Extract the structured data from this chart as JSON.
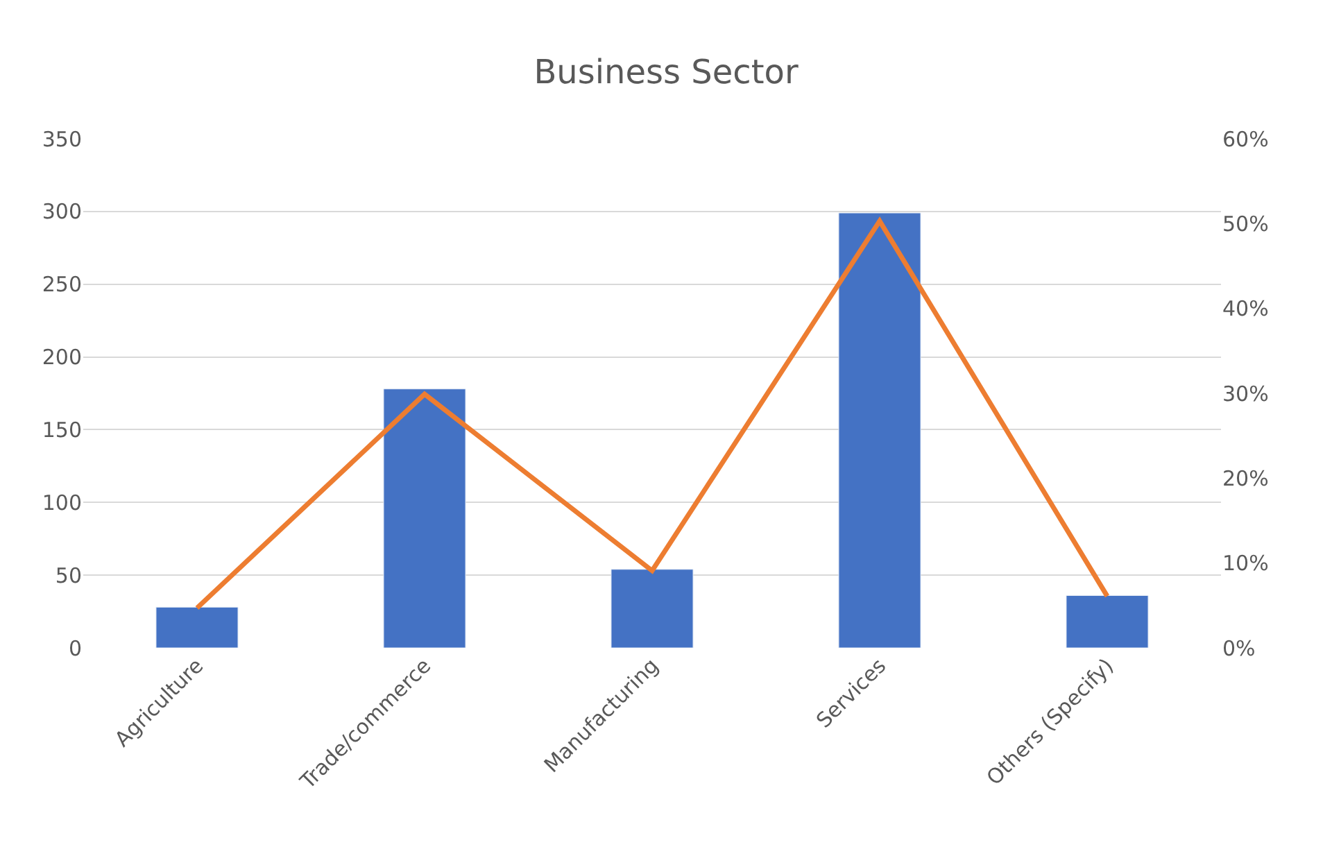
{
  "chart_data": {
    "type": "bar",
    "title": "Business Sector",
    "categories": [
      "Agriculture",
      "Trade/commerce",
      "Manufacturing",
      "Services",
      "Others (Specify)"
    ],
    "series": [
      {
        "color": "#4472c4",
        "values": [
          28,
          178,
          54,
          299,
          36
        ]
      },
      {
        "type": "line",
        "axis": "y2",
        "color": "#ed7d31",
        "values": [
          4.7,
          29.9,
          9.1,
          50.3,
          6.1
        ]
      }
    ],
    "ylim": [
      0,
      350
    ],
    "yticks": [
      0,
      50,
      100,
      150,
      200,
      250,
      300,
      350
    ],
    "y2lim": [
      0,
      60
    ],
    "y2ticks": [
      {
        "value": 0,
        "label": "0%"
      },
      {
        "value": 10,
        "label": "10%"
      },
      {
        "value": 20,
        "label": "20%"
      },
      {
        "value": 30,
        "label": "30%"
      },
      {
        "value": 40,
        "label": "40%"
      },
      {
        "value": 50,
        "label": "50%"
      },
      {
        "value": 60,
        "label": "60%"
      }
    ],
    "grid": "y",
    "marker": "none",
    "line_style": "solid"
  }
}
